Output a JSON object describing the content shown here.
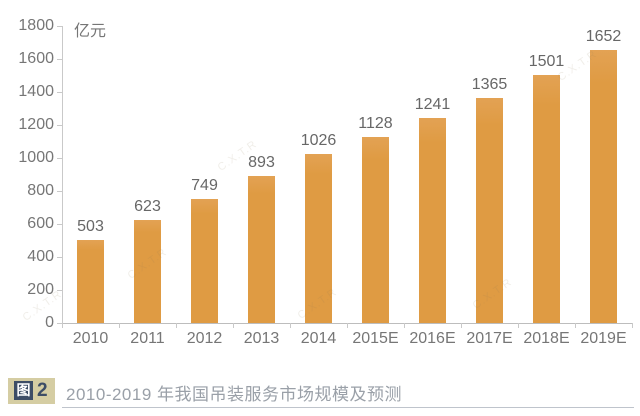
{
  "chart_data": {
    "type": "bar",
    "title": "",
    "unit_label": "亿元",
    "categories": [
      "2010",
      "2011",
      "2012",
      "2013",
      "2014",
      "2015E",
      "2016E",
      "2017E",
      "2018E",
      "2019E"
    ],
    "values": [
      503,
      623,
      749,
      893,
      1026,
      1128,
      1241,
      1365,
      1501,
      1652
    ],
    "ylim": [
      0,
      1800
    ],
    "ytick_step": 200,
    "grid": false,
    "legend_position": "none",
    "bar_color": "#df9b43",
    "axis_color": "#c9c9c9",
    "label_color": "#767676"
  },
  "caption": {
    "badge_label": "图",
    "badge_number": "2",
    "text": "2010-2019 年我国吊装服务市场规模及预测"
  },
  "watermark": {
    "text": "C.X.T.R"
  }
}
